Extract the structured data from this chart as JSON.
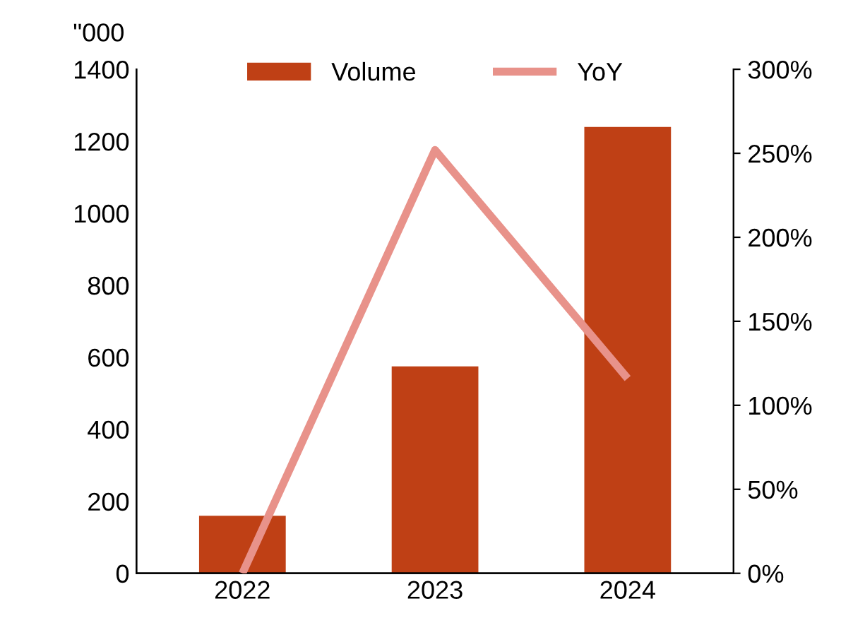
{
  "chart_data": {
    "type": "bar",
    "ylabel": "\"000",
    "categories": [
      "2022",
      "2023",
      "2024"
    ],
    "series": [
      {
        "name": "Volume",
        "color": "#bf4015",
        "values": [
          160,
          575,
          1240
        ]
      },
      {
        "name": "YoY",
        "type": "line",
        "axis": "y2",
        "color": "#e8928a",
        "values": [
          0,
          252,
          116
        ]
      }
    ],
    "ylim": [
      0,
      1400
    ],
    "yticks": [
      0,
      200,
      400,
      600,
      800,
      1000,
      1200,
      1400
    ],
    "y2lim": [
      0,
      300
    ],
    "y2ticks": [
      {
        "value": 0,
        "label": "0%"
      },
      {
        "value": 50,
        "label": "50%"
      },
      {
        "value": 100,
        "label": "100%"
      },
      {
        "value": 150,
        "label": "150%"
      },
      {
        "value": 200,
        "label": "200%"
      },
      {
        "value": 250,
        "label": "250%"
      },
      {
        "value": 300,
        "label": "300%"
      }
    ],
    "legend": "top",
    "grid": false,
    "marker": "none",
    "line_style": "solid"
  }
}
